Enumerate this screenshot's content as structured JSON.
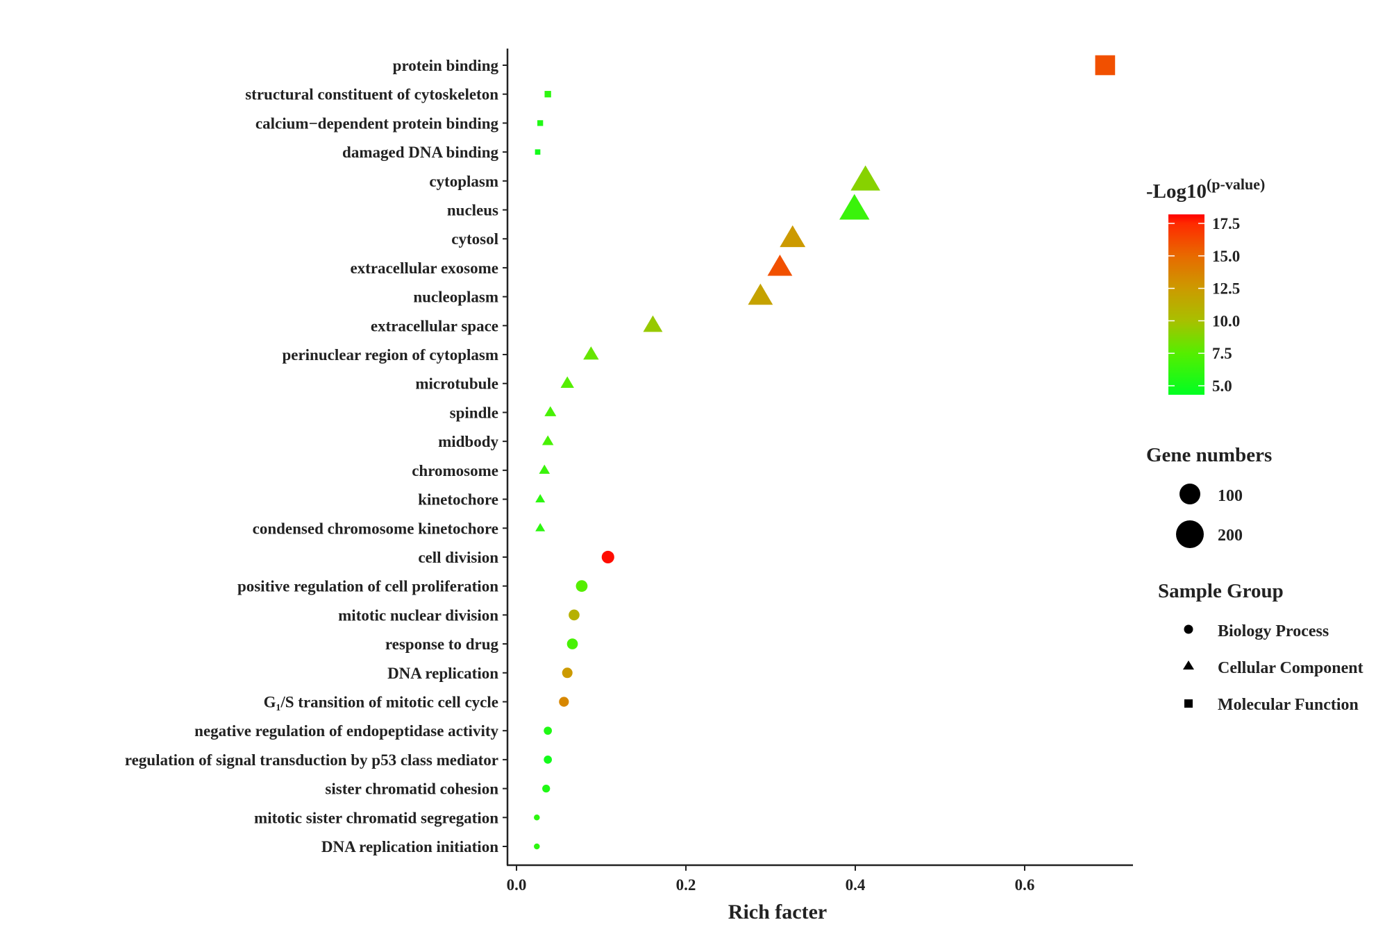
{
  "chart_data": {
    "type": "scatter",
    "title": "",
    "xlabel": "Rich facter",
    "ylabel": "",
    "xlim": [
      -0.01,
      0.725
    ],
    "xticks": [
      "0.0",
      "0.2",
      "0.4",
      "0.6"
    ],
    "xtick_values": [
      0,
      0.2,
      0.4,
      0.6
    ],
    "grid": false,
    "color_legend": {
      "title": "-Log10",
      "title_superscript": "(p-value)",
      "ticks": [
        "17.5",
        "15.0",
        "12.5",
        "10.0",
        "7.5",
        "5.0"
      ],
      "tick_values": [
        17.5,
        15,
        12.5,
        10,
        7.5,
        5
      ],
      "range": [
        4.3,
        18.2
      ],
      "low_color": "#00ff22",
      "high_color": "#ff0000",
      "placement": "right"
    },
    "size_legend": {
      "title": "Gene numbers",
      "items": [
        {
          "label": "100",
          "value": 100
        },
        {
          "label": "200",
          "value": 200
        }
      ]
    },
    "shape_legend": {
      "title": "Sample Group",
      "items": [
        {
          "label": "Biology Process",
          "shape": "circle"
        },
        {
          "label": "Cellular Component",
          "shape": "triangle"
        },
        {
          "label": "Molecular Function",
          "shape": "square"
        }
      ]
    },
    "points": [
      {
        "term": "protein binding",
        "x": 0.695,
        "logp": 16.0,
        "genes": 215,
        "group": "Molecular Function"
      },
      {
        "term": "structural constituent of cytoskeleton",
        "x": 0.037,
        "logp": 6.0,
        "genes": 14,
        "group": "Molecular Function"
      },
      {
        "term": "calcium−dependent protein binding",
        "x": 0.028,
        "logp": 5.5,
        "genes": 10,
        "group": "Molecular Function"
      },
      {
        "term": "damaged DNA binding",
        "x": 0.025,
        "logp": 5.0,
        "genes": 8,
        "group": "Molecular Function"
      },
      {
        "term": "cytoplasm",
        "x": 0.412,
        "logp": 9.0,
        "genes": 220,
        "group": "Cellular Component"
      },
      {
        "term": "nucleus",
        "x": 0.399,
        "logp": 6.5,
        "genes": 230,
        "group": "Cellular Component"
      },
      {
        "term": "cytosol",
        "x": 0.326,
        "logp": 12.5,
        "genes": 160,
        "group": "Cellular Component"
      },
      {
        "term": "extracellular exosome",
        "x": 0.311,
        "logp": 16.0,
        "genes": 150,
        "group": "Cellular Component"
      },
      {
        "term": "nucleoplasm",
        "x": 0.288,
        "logp": 12.0,
        "genes": 150,
        "group": "Cellular Component"
      },
      {
        "term": "extracellular space",
        "x": 0.161,
        "logp": 9.5,
        "genes": 85,
        "group": "Cellular Component"
      },
      {
        "term": "perinuclear region of cytoplasm",
        "x": 0.088,
        "logp": 8.0,
        "genes": 50,
        "group": "Cellular Component"
      },
      {
        "term": "microtubule",
        "x": 0.06,
        "logp": 7.5,
        "genes": 35,
        "group": "Cellular Component"
      },
      {
        "term": "spindle",
        "x": 0.04,
        "logp": 7.0,
        "genes": 25,
        "group": "Cellular Component"
      },
      {
        "term": "midbody",
        "x": 0.037,
        "logp": 7.0,
        "genes": 23,
        "group": "Cellular Component"
      },
      {
        "term": "chromosome",
        "x": 0.033,
        "logp": 6.5,
        "genes": 20,
        "group": "Cellular Component"
      },
      {
        "term": "kinetochore",
        "x": 0.028,
        "logp": 6.0,
        "genes": 15,
        "group": "Cellular Component"
      },
      {
        "term": "condensed chromosome kinetochore",
        "x": 0.028,
        "logp": 6.0,
        "genes": 15,
        "group": "Cellular Component"
      },
      {
        "term": "cell division",
        "x": 0.108,
        "logp": 18.0,
        "genes": 60,
        "group": "Biology Process"
      },
      {
        "term": "positive regulation of cell proliferation",
        "x": 0.077,
        "logp": 7.5,
        "genes": 50,
        "group": "Biology Process"
      },
      {
        "term": "mitotic nuclear division",
        "x": 0.068,
        "logp": 11.0,
        "genes": 42,
        "group": "Biology Process"
      },
      {
        "term": "response to drug",
        "x": 0.066,
        "logp": 7.0,
        "genes": 42,
        "group": "Biology Process"
      },
      {
        "term": "DNA replication",
        "x": 0.06,
        "logp": 12.5,
        "genes": 38,
        "group": "Biology Process"
      },
      {
        "term": "G₁/S transition of mitotic cell cycle",
        "x": 0.056,
        "logp": 13.5,
        "genes": 33,
        "group": "Biology Process"
      },
      {
        "term": "negative regulation of endopeptidase activity",
        "x": 0.037,
        "logp": 5.5,
        "genes": 20,
        "group": "Biology Process"
      },
      {
        "term": "regulation of signal transduction by p53 class mediator",
        "x": 0.037,
        "logp": 5.0,
        "genes": 20,
        "group": "Biology Process"
      },
      {
        "term": "sister chromatid cohesion",
        "x": 0.035,
        "logp": 5.5,
        "genes": 18,
        "group": "Biology Process"
      },
      {
        "term": "mitotic sister chromatid segregation",
        "x": 0.024,
        "logp": 6.0,
        "genes": 8,
        "group": "Biology Process"
      },
      {
        "term": "DNA replication initiation",
        "x": 0.024,
        "logp": 6.0,
        "genes": 8,
        "group": "Biology Process"
      }
    ]
  }
}
